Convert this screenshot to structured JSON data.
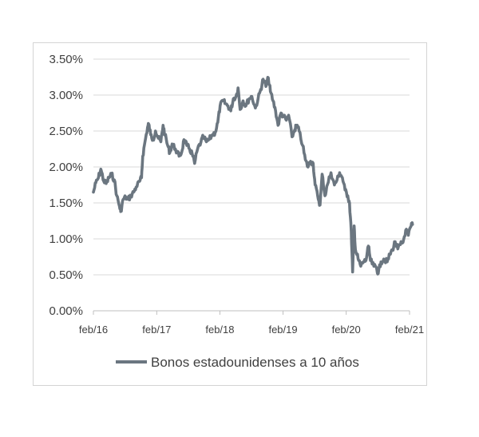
{
  "colors": {
    "series": "#6b7680",
    "grid": "#d9d9d9",
    "axis": "#bfbfbf",
    "text": "#404040"
  },
  "chart_data": {
    "type": "line",
    "title": "",
    "xlabel": "",
    "ylabel": "",
    "ylim": [
      0,
      3.5
    ],
    "y_ticks": [
      0,
      0.5,
      1.0,
      1.5,
      2.0,
      2.5,
      3.0,
      3.5
    ],
    "y_tick_labels": [
      "0.00%",
      "0.50%",
      "1.00%",
      "1.50%",
      "2.00%",
      "2.50%",
      "3.00%",
      "3.50%"
    ],
    "x_range": [
      "2016-02",
      "2021-02"
    ],
    "x_ticks": [
      "2016-02",
      "2017-02",
      "2018-02",
      "2019-02",
      "2020-02",
      "2021-02"
    ],
    "x_tick_labels": [
      "feb/16",
      "feb/17",
      "feb/18",
      "feb/19",
      "feb/20",
      "feb/21"
    ],
    "grid": "horizontal",
    "legend": {
      "position": "bottom",
      "entries": [
        "Bonos estadounidenses a 10 años"
      ]
    },
    "series": [
      {
        "name": "Bonos estadounidenses a 10 años",
        "points": [
          [
            "2016-02-01",
            1.65
          ],
          [
            "2016-02-15",
            1.78
          ],
          [
            "2016-03-01",
            1.85
          ],
          [
            "2016-03-15",
            1.97
          ],
          [
            "2016-04-01",
            1.8
          ],
          [
            "2016-04-15",
            1.77
          ],
          [
            "2016-05-01",
            1.85
          ],
          [
            "2016-05-15",
            1.9
          ],
          [
            "2016-06-01",
            1.82
          ],
          [
            "2016-06-15",
            1.6
          ],
          [
            "2016-07-01",
            1.45
          ],
          [
            "2016-07-08",
            1.38
          ],
          [
            "2016-07-22",
            1.55
          ],
          [
            "2016-08-05",
            1.58
          ],
          [
            "2016-08-20",
            1.55
          ],
          [
            "2016-09-05",
            1.6
          ],
          [
            "2016-09-20",
            1.65
          ],
          [
            "2016-10-05",
            1.72
          ],
          [
            "2016-10-25",
            1.8
          ],
          [
            "2016-11-05",
            1.85
          ],
          [
            "2016-11-12",
            2.15
          ],
          [
            "2016-11-25",
            2.35
          ],
          [
            "2016-12-10",
            2.55
          ],
          [
            "2016-12-16",
            2.6
          ],
          [
            "2016-12-28",
            2.45
          ],
          [
            "2017-01-10",
            2.38
          ],
          [
            "2017-01-25",
            2.5
          ],
          [
            "2017-02-10",
            2.4
          ],
          [
            "2017-02-25",
            2.35
          ],
          [
            "2017-03-10",
            2.58
          ],
          [
            "2017-03-20",
            2.45
          ],
          [
            "2017-04-05",
            2.3
          ],
          [
            "2017-04-18",
            2.2
          ],
          [
            "2017-05-01",
            2.32
          ],
          [
            "2017-05-20",
            2.25
          ],
          [
            "2017-06-10",
            2.15
          ],
          [
            "2017-06-25",
            2.2
          ],
          [
            "2017-07-08",
            2.38
          ],
          [
            "2017-07-25",
            2.3
          ],
          [
            "2017-08-10",
            2.25
          ],
          [
            "2017-08-25",
            2.18
          ],
          [
            "2017-09-08",
            2.05
          ],
          [
            "2017-09-25",
            2.25
          ],
          [
            "2017-10-15",
            2.35
          ],
          [
            "2017-10-28",
            2.42
          ],
          [
            "2017-11-15",
            2.35
          ],
          [
            "2017-12-01",
            2.38
          ],
          [
            "2017-12-20",
            2.45
          ],
          [
            "2018-01-05",
            2.48
          ],
          [
            "2018-01-20",
            2.62
          ],
          [
            "2018-02-02",
            2.85
          ],
          [
            "2018-02-20",
            2.92
          ],
          [
            "2018-03-05",
            2.88
          ],
          [
            "2018-03-20",
            2.85
          ],
          [
            "2018-04-05",
            2.78
          ],
          [
            "2018-04-20",
            2.95
          ],
          [
            "2018-05-05",
            2.98
          ],
          [
            "2018-05-17",
            3.1
          ],
          [
            "2018-05-29",
            2.8
          ],
          [
            "2018-06-15",
            2.92
          ],
          [
            "2018-07-01",
            2.85
          ],
          [
            "2018-07-20",
            2.95
          ],
          [
            "2018-08-05",
            2.98
          ],
          [
            "2018-08-25",
            2.82
          ],
          [
            "2018-09-10",
            2.95
          ],
          [
            "2018-09-25",
            3.08
          ],
          [
            "2018-10-09",
            3.22
          ],
          [
            "2018-10-25",
            3.12
          ],
          [
            "2018-11-08",
            3.24
          ],
          [
            "2018-11-20",
            3.05
          ],
          [
            "2018-12-05",
            2.92
          ],
          [
            "2018-12-20",
            2.78
          ],
          [
            "2019-01-03",
            2.58
          ],
          [
            "2019-01-20",
            2.75
          ],
          [
            "2019-02-05",
            2.7
          ],
          [
            "2019-02-20",
            2.65
          ],
          [
            "2019-03-05",
            2.72
          ],
          [
            "2019-03-25",
            2.42
          ],
          [
            "2019-04-10",
            2.52
          ],
          [
            "2019-04-20",
            2.58
          ],
          [
            "2019-05-05",
            2.5
          ],
          [
            "2019-05-25",
            2.3
          ],
          [
            "2019-06-10",
            2.1
          ],
          [
            "2019-06-25",
            2.0
          ],
          [
            "2019-07-10",
            2.08
          ],
          [
            "2019-07-25",
            2.05
          ],
          [
            "2019-08-05",
            1.75
          ],
          [
            "2019-08-20",
            1.6
          ],
          [
            "2019-09-03",
            1.47
          ],
          [
            "2019-09-15",
            1.9
          ],
          [
            "2019-10-01",
            1.6
          ],
          [
            "2019-10-15",
            1.75
          ],
          [
            "2019-11-05",
            1.92
          ],
          [
            "2019-11-25",
            1.75
          ],
          [
            "2019-12-10",
            1.82
          ],
          [
            "2019-12-25",
            1.92
          ],
          [
            "2020-01-10",
            1.85
          ],
          [
            "2020-01-25",
            1.68
          ],
          [
            "2020-02-10",
            1.6
          ],
          [
            "2020-02-20",
            1.5
          ],
          [
            "2020-03-01",
            1.1
          ],
          [
            "2020-03-09",
            0.54
          ],
          [
            "2020-03-18",
            1.18
          ],
          [
            "2020-03-25",
            0.85
          ],
          [
            "2020-04-10",
            0.72
          ],
          [
            "2020-04-25",
            0.62
          ],
          [
            "2020-05-10",
            0.68
          ],
          [
            "2020-05-25",
            0.7
          ],
          [
            "2020-06-08",
            0.9
          ],
          [
            "2020-06-20",
            0.7
          ],
          [
            "2020-07-10",
            0.62
          ],
          [
            "2020-07-25",
            0.6
          ],
          [
            "2020-08-04",
            0.52
          ],
          [
            "2020-08-20",
            0.68
          ],
          [
            "2020-09-05",
            0.72
          ],
          [
            "2020-09-25",
            0.68
          ],
          [
            "2020-10-10",
            0.78
          ],
          [
            "2020-10-25",
            0.85
          ],
          [
            "2020-11-10",
            0.96
          ],
          [
            "2020-11-25",
            0.86
          ],
          [
            "2020-12-10",
            0.92
          ],
          [
            "2020-12-25",
            0.95
          ],
          [
            "2021-01-10",
            1.12
          ],
          [
            "2021-01-25",
            1.05
          ],
          [
            "2021-02-10",
            1.18
          ],
          [
            "2021-02-18",
            1.2
          ]
        ]
      }
    ]
  }
}
